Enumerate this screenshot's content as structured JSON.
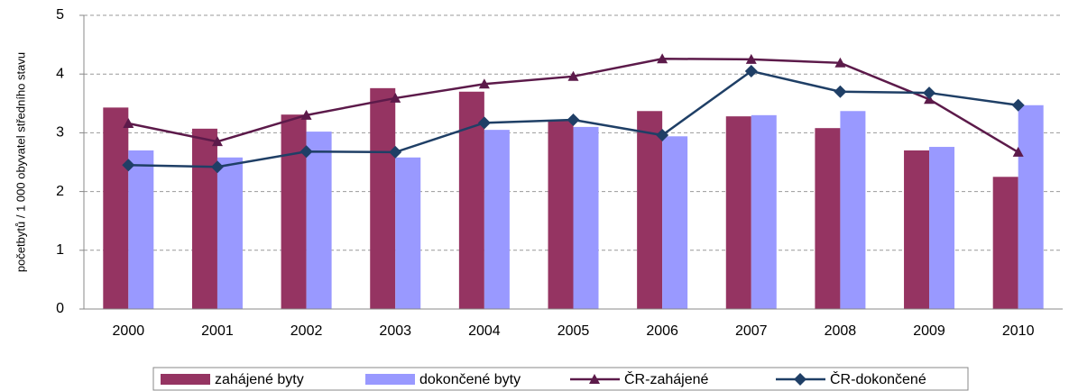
{
  "chart_data": {
    "type": "bar",
    "y_label": "početbytů / 1 000 obyvatel středního stavu",
    "categories": [
      "2000",
      "2001",
      "2002",
      "2003",
      "2004",
      "2005",
      "2006",
      "2007",
      "2008",
      "2009",
      "2010"
    ],
    "series": [
      {
        "name": "zahájené byty",
        "type": "bar",
        "color": "#953462",
        "values": [
          3.43,
          3.07,
          3.31,
          3.76,
          3.7,
          3.22,
          3.37,
          3.28,
          3.08,
          2.7,
          2.25
        ]
      },
      {
        "name": "dokončené byty",
        "type": "bar",
        "color": "#9999ff",
        "values": [
          2.7,
          2.58,
          3.02,
          2.58,
          3.05,
          3.1,
          2.94,
          3.3,
          3.37,
          2.76,
          3.47
        ]
      },
      {
        "name": "ČR-zahájené",
        "type": "line",
        "marker": "triangle",
        "color": "#5c1a4a",
        "values": [
          3.16,
          2.85,
          3.3,
          3.59,
          3.83,
          3.96,
          4.26,
          4.25,
          4.19,
          3.57,
          2.67
        ]
      },
      {
        "name": "ČR-dokončené",
        "type": "line",
        "marker": "diamond",
        "color": "#1f3f66",
        "values": [
          2.45,
          2.42,
          2.68,
          2.67,
          3.17,
          3.22,
          2.96,
          4.05,
          3.7,
          3.68,
          3.47
        ]
      }
    ],
    "ylim": [
      0,
      5
    ],
    "yticks": [
      0,
      1,
      2,
      3,
      4,
      5
    ],
    "grid": true,
    "legend": "bottom"
  }
}
